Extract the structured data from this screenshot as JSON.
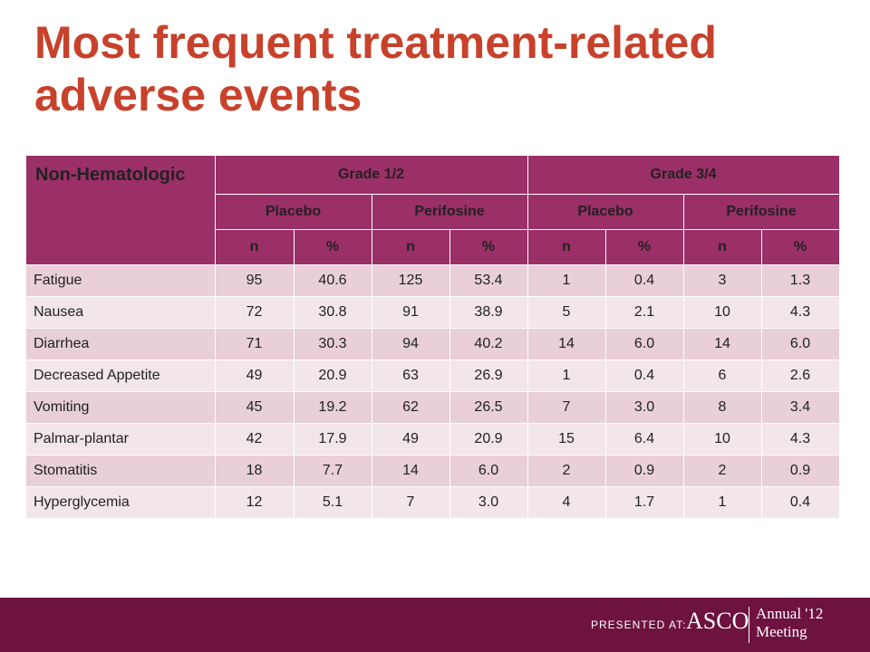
{
  "slide": {
    "title": "Most frequent treatment-related adverse events"
  },
  "table": {
    "corner_label": "Non-Hematologic",
    "grade_headers": [
      "Grade 1/2",
      "Grade 3/4"
    ],
    "arm_headers": [
      "Placebo",
      "Perifosine",
      "Placebo",
      "Perifosine"
    ],
    "stat_headers": [
      "n",
      "%",
      "n",
      "%",
      "n",
      "%",
      "n",
      "%"
    ],
    "rows": [
      {
        "event": "Fatigue",
        "values": [
          "95",
          "40.6",
          "125",
          "53.4",
          "1",
          "0.4",
          "3",
          "1.3"
        ]
      },
      {
        "event": "Nausea",
        "values": [
          "72",
          "30.8",
          "91",
          "38.9",
          "5",
          "2.1",
          "10",
          "4.3"
        ]
      },
      {
        "event": "Diarrhea",
        "values": [
          "71",
          "30.3",
          "94",
          "40.2",
          "14",
          "6.0",
          "14",
          "6.0"
        ]
      },
      {
        "event": "Decreased Appetite",
        "values": [
          "49",
          "20.9",
          "63",
          "26.9",
          "1",
          "0.4",
          "6",
          "2.6"
        ]
      },
      {
        "event": "Vomiting",
        "values": [
          "45",
          "19.2",
          "62",
          "26.5",
          "7",
          "3.0",
          "8",
          "3.4"
        ]
      },
      {
        "event": "Palmar-plantar",
        "values": [
          "42",
          "17.9",
          "49",
          "20.9",
          "15",
          "6.4",
          "10",
          "4.3"
        ]
      },
      {
        "event": "Stomatitis",
        "values": [
          "18",
          "7.7",
          "14",
          "6.0",
          "2",
          "0.9",
          "2",
          "0.9"
        ]
      },
      {
        "event": "Hyperglycemia",
        "values": [
          "12",
          "5.1",
          "7",
          "3.0",
          "4",
          "1.7",
          "1",
          "0.4"
        ]
      }
    ]
  },
  "footer": {
    "presented_at": "PRESENTED AT:",
    "asco": "ASCO",
    "meeting_line1": "Annual '12",
    "meeting_line2": "Meeting"
  },
  "colors": {
    "title": "#c8412b",
    "header_bg": "#9b2f67",
    "row_odd": "#e8cfd8",
    "row_even": "#f3e6ea",
    "footer_bg": "#6e1240"
  }
}
